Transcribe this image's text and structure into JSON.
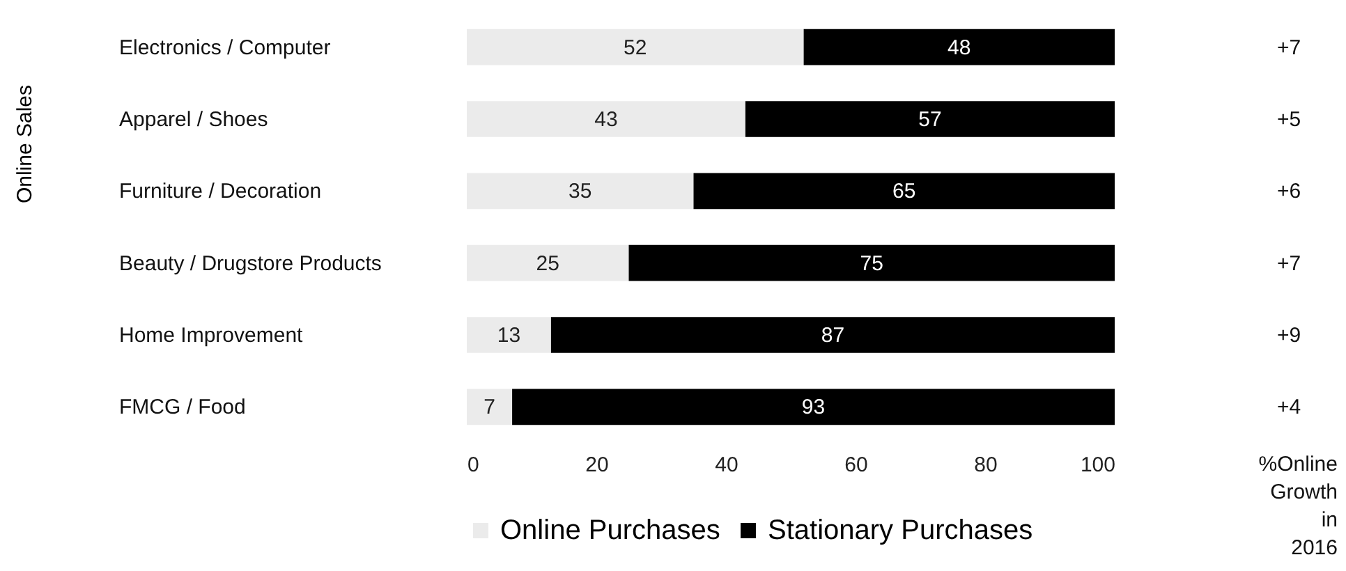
{
  "chart_data": {
    "type": "bar",
    "orientation": "horizontal",
    "stacked": true,
    "data_labels": true,
    "ylabel": "Online Sales",
    "categories": [
      "Electronics / Computer",
      "Apparel / Shoes",
      "Furniture / Decoration",
      "Beauty / Drugstore Products",
      "Home Improvement",
      "FMCG / Food"
    ],
    "series": [
      {
        "name": "Online Purchases",
        "color": "#ebebeb",
        "values": [
          52,
          43,
          35,
          25,
          13,
          7
        ]
      },
      {
        "name": "Stationary Purchases",
        "color": "#000000",
        "values": [
          48,
          57,
          65,
          75,
          87,
          93
        ]
      }
    ],
    "xlim": [
      0,
      100
    ],
    "xticks": [
      0,
      20,
      40,
      60,
      80,
      100
    ],
    "grid": false,
    "legend": "bottom",
    "annotations": [
      "+7",
      "+5",
      "+6",
      "+7",
      "+9",
      "+4",
      "%Online Growth in 2016"
    ]
  }
}
